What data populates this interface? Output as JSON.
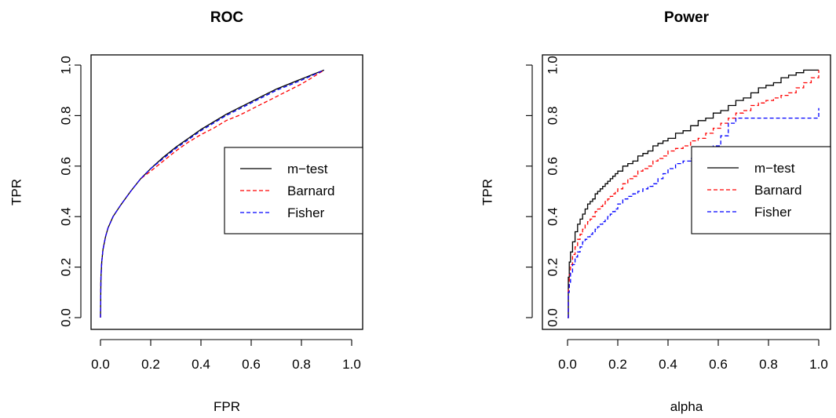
{
  "chart_data": [
    {
      "type": "line",
      "title": "ROC",
      "xlabel": "FPR",
      "ylabel": "TPR",
      "xlim": [
        0,
        1
      ],
      "ylim": [
        0,
        1
      ],
      "xticks": [
        "0.0",
        "0.2",
        "0.4",
        "0.6",
        "0.8",
        "1.0"
      ],
      "yticks": [
        "0.0",
        "0.2",
        "0.4",
        "0.6",
        "0.8",
        "1.0"
      ],
      "legend": "center-right",
      "grid": false,
      "series": [
        {
          "name": "m−test",
          "color": "#000000",
          "dash": "solid",
          "x": [
            0,
            0.002,
            0.005,
            0.01,
            0.02,
            0.03,
            0.05,
            0.08,
            0.12,
            0.16,
            0.2,
            0.25,
            0.3,
            0.35,
            0.4,
            0.45,
            0.5,
            0.55,
            0.6,
            0.65,
            0.7,
            0.75,
            0.8,
            0.85,
            0.89
          ],
          "y": [
            0,
            0.16,
            0.22,
            0.27,
            0.32,
            0.355,
            0.4,
            0.445,
            0.5,
            0.55,
            0.59,
            0.635,
            0.675,
            0.71,
            0.745,
            0.775,
            0.805,
            0.83,
            0.855,
            0.88,
            0.905,
            0.925,
            0.945,
            0.965,
            0.98
          ]
        },
        {
          "name": "Barnard",
          "color": "#ff0000",
          "dash": "dashed",
          "x": [
            0,
            0.002,
            0.005,
            0.01,
            0.02,
            0.03,
            0.05,
            0.08,
            0.12,
            0.16,
            0.2,
            0.25,
            0.3,
            0.35,
            0.4,
            0.45,
            0.5,
            0.55,
            0.6,
            0.65,
            0.7,
            0.75,
            0.8,
            0.85,
            0.89
          ],
          "y": [
            0,
            0.16,
            0.22,
            0.27,
            0.32,
            0.355,
            0.4,
            0.445,
            0.5,
            0.55,
            0.58,
            0.62,
            0.66,
            0.695,
            0.725,
            0.75,
            0.78,
            0.8,
            0.825,
            0.85,
            0.875,
            0.9,
            0.925,
            0.955,
            0.98
          ]
        },
        {
          "name": "Fisher",
          "color": "#0000ff",
          "dash": "dashed",
          "x": [
            0,
            0.002,
            0.005,
            0.01,
            0.02,
            0.03,
            0.05,
            0.08,
            0.12,
            0.16,
            0.2,
            0.25,
            0.3,
            0.35,
            0.4,
            0.45,
            0.5,
            0.55,
            0.6,
            0.65,
            0.7,
            0.75,
            0.8,
            0.85,
            0.89
          ],
          "y": [
            0,
            0.16,
            0.22,
            0.27,
            0.32,
            0.355,
            0.4,
            0.445,
            0.5,
            0.55,
            0.59,
            0.63,
            0.67,
            0.705,
            0.74,
            0.77,
            0.8,
            0.825,
            0.85,
            0.875,
            0.9,
            0.92,
            0.94,
            0.962,
            0.98
          ]
        }
      ]
    },
    {
      "type": "line",
      "title": "Power",
      "xlabel": "alpha",
      "ylabel": "TPR",
      "xlim": [
        0,
        1
      ],
      "ylim": [
        0,
        1
      ],
      "xticks": [
        "0.0",
        "0.2",
        "0.4",
        "0.6",
        "0.8",
        "1.0"
      ],
      "yticks": [
        "0.0",
        "0.2",
        "0.4",
        "0.6",
        "0.8",
        "1.0"
      ],
      "legend": "center-right",
      "grid": false,
      "series": [
        {
          "name": "m−test",
          "color": "#000000",
          "dash": "solid",
          "x": [
            0,
            0.003,
            0.007,
            0.012,
            0.02,
            0.03,
            0.04,
            0.05,
            0.06,
            0.07,
            0.08,
            0.09,
            0.1,
            0.11,
            0.12,
            0.13,
            0.14,
            0.15,
            0.16,
            0.17,
            0.18,
            0.19,
            0.2,
            0.22,
            0.24,
            0.26,
            0.28,
            0.3,
            0.32,
            0.34,
            0.36,
            0.38,
            0.4,
            0.43,
            0.46,
            0.49,
            0.52,
            0.55,
            0.58,
            0.61,
            0.64,
            0.67,
            0.7,
            0.73,
            0.76,
            0.79,
            0.82,
            0.85,
            0.88,
            0.91,
            0.94,
            0.97,
            1.0
          ],
          "y": [
            0,
            0.16,
            0.22,
            0.26,
            0.3,
            0.34,
            0.37,
            0.39,
            0.41,
            0.43,
            0.45,
            0.46,
            0.47,
            0.49,
            0.5,
            0.51,
            0.52,
            0.53,
            0.54,
            0.55,
            0.56,
            0.57,
            0.58,
            0.6,
            0.61,
            0.62,
            0.64,
            0.65,
            0.66,
            0.68,
            0.69,
            0.7,
            0.71,
            0.73,
            0.74,
            0.76,
            0.78,
            0.79,
            0.81,
            0.82,
            0.84,
            0.86,
            0.87,
            0.89,
            0.91,
            0.92,
            0.93,
            0.95,
            0.96,
            0.97,
            0.98,
            0.98,
            0.98
          ]
        },
        {
          "name": "Barnard",
          "color": "#ff0000",
          "dash": "dashed",
          "x": [
            0,
            0.003,
            0.007,
            0.012,
            0.02,
            0.03,
            0.04,
            0.05,
            0.06,
            0.07,
            0.08,
            0.09,
            0.1,
            0.11,
            0.12,
            0.13,
            0.14,
            0.15,
            0.16,
            0.17,
            0.18,
            0.19,
            0.2,
            0.22,
            0.24,
            0.26,
            0.28,
            0.3,
            0.32,
            0.34,
            0.36,
            0.38,
            0.4,
            0.43,
            0.46,
            0.49,
            0.52,
            0.55,
            0.58,
            0.61,
            0.64,
            0.67,
            0.7,
            0.73,
            0.76,
            0.79,
            0.82,
            0.85,
            0.88,
            0.91,
            0.94,
            0.97,
            1.0
          ],
          "y": [
            0,
            0.12,
            0.17,
            0.21,
            0.25,
            0.28,
            0.31,
            0.33,
            0.35,
            0.37,
            0.38,
            0.39,
            0.4,
            0.42,
            0.43,
            0.44,
            0.45,
            0.46,
            0.47,
            0.48,
            0.49,
            0.5,
            0.51,
            0.53,
            0.55,
            0.56,
            0.58,
            0.59,
            0.6,
            0.62,
            0.63,
            0.64,
            0.66,
            0.67,
            0.68,
            0.7,
            0.71,
            0.73,
            0.75,
            0.77,
            0.79,
            0.81,
            0.82,
            0.84,
            0.85,
            0.86,
            0.87,
            0.88,
            0.89,
            0.91,
            0.93,
            0.95,
            0.98
          ]
        },
        {
          "name": "Fisher",
          "color": "#0000ff",
          "dash": "dashed",
          "x": [
            0,
            0.003,
            0.007,
            0.012,
            0.02,
            0.03,
            0.04,
            0.05,
            0.06,
            0.07,
            0.08,
            0.09,
            0.1,
            0.11,
            0.12,
            0.13,
            0.14,
            0.15,
            0.16,
            0.17,
            0.18,
            0.19,
            0.2,
            0.22,
            0.24,
            0.26,
            0.28,
            0.3,
            0.32,
            0.34,
            0.36,
            0.38,
            0.4,
            0.43,
            0.46,
            0.49,
            0.52,
            0.55,
            0.58,
            0.61,
            0.64,
            0.67,
            0.7,
            0.73,
            0.76,
            0.79,
            0.82,
            0.85,
            0.88,
            0.91,
            0.94,
            0.97,
            1.0
          ],
          "y": [
            0,
            0.1,
            0.14,
            0.18,
            0.21,
            0.24,
            0.26,
            0.28,
            0.3,
            0.31,
            0.32,
            0.33,
            0.34,
            0.35,
            0.36,
            0.37,
            0.38,
            0.39,
            0.4,
            0.41,
            0.42,
            0.43,
            0.45,
            0.47,
            0.48,
            0.49,
            0.5,
            0.51,
            0.52,
            0.53,
            0.55,
            0.57,
            0.59,
            0.61,
            0.62,
            0.63,
            0.65,
            0.66,
            0.68,
            0.72,
            0.77,
            0.79,
            0.79,
            0.79,
            0.79,
            0.79,
            0.79,
            0.79,
            0.79,
            0.79,
            0.79,
            0.79,
            0.83
          ]
        }
      ]
    }
  ]
}
